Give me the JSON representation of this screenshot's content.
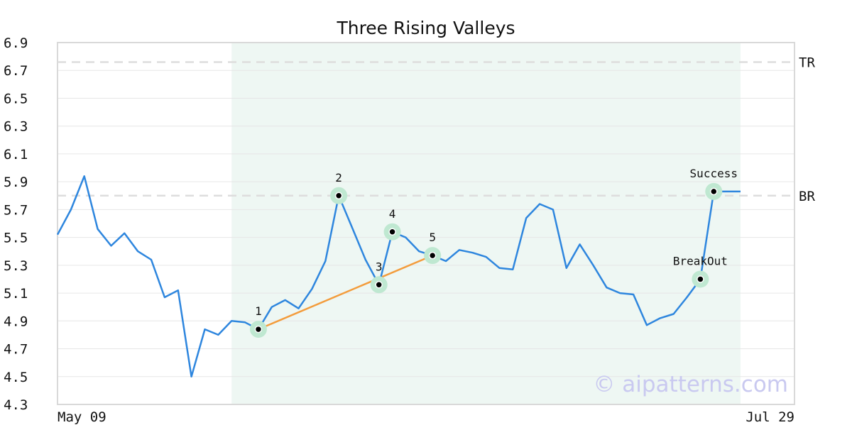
{
  "chart_data": {
    "type": "line",
    "title": "Three Rising Valleys",
    "watermark": "© aipatterns.com",
    "x_labels": [
      "May 09",
      "Jul 29"
    ],
    "ylim": [
      4.3,
      6.9
    ],
    "y_ticks": [
      "4.3",
      "4.5",
      "4.7",
      "4.9",
      "5.1",
      "5.3",
      "5.5",
      "5.7",
      "5.9",
      "6.1",
      "6.3",
      "6.5",
      "6.7",
      "6.9"
    ],
    "grid": true,
    "series": [
      {
        "color": "#2e86de",
        "values": [
          5.52,
          5.7,
          5.94,
          5.56,
          5.44,
          5.53,
          5.4,
          5.34,
          5.07,
          5.12,
          4.5,
          4.84,
          4.8,
          4.9,
          4.89,
          4.84,
          5.0,
          5.05,
          4.99,
          5.13,
          5.33,
          5.8,
          5.57,
          5.34,
          5.16,
          5.54,
          5.5,
          5.4,
          5.37,
          5.33,
          5.41,
          5.39,
          5.36,
          5.28,
          5.27,
          5.64,
          5.74,
          5.7,
          5.28,
          5.45,
          5.3,
          5.14,
          5.1,
          5.09,
          4.87,
          4.92,
          4.95,
          5.07,
          5.2,
          5.83,
          5.83,
          5.83
        ]
      }
    ],
    "pattern_region": {
      "start_index": 13,
      "end_index": 51,
      "color": "#eef7f3"
    },
    "reference_lines": [
      {
        "label": "TR",
        "value": 6.76
      },
      {
        "label": "BR",
        "value": 5.8
      }
    ],
    "trendline": {
      "from_index": 15,
      "to_index": 28,
      "color": "#f39c3c"
    },
    "annotations": [
      {
        "label": "1",
        "index": 15
      },
      {
        "label": "2",
        "index": 21
      },
      {
        "label": "3",
        "index": 24
      },
      {
        "label": "4",
        "index": 25
      },
      {
        "label": "5",
        "index": 28
      },
      {
        "label": "BreakOut",
        "index": 48
      },
      {
        "label": "Success",
        "index": 49
      }
    ]
  }
}
